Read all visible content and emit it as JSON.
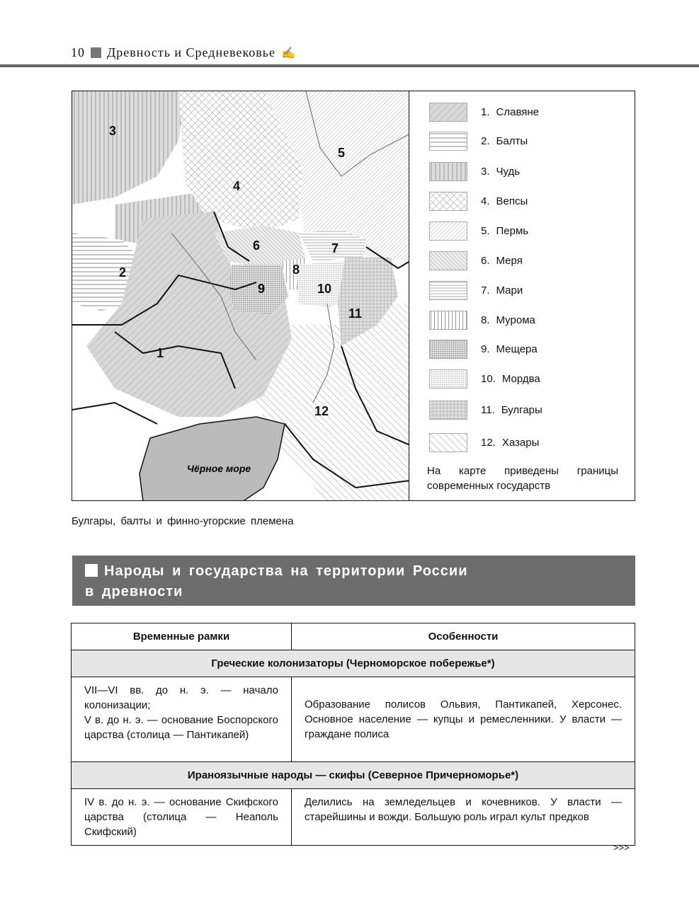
{
  "header": {
    "page_number": "10",
    "section": "Древность и Средневековье",
    "icon": "candle-hand-icon"
  },
  "map": {
    "region_labels": [
      "1",
      "2",
      "3",
      "4",
      "5",
      "6",
      "7",
      "8",
      "9",
      "10",
      "11",
      "12"
    ],
    "sea_label": "Чёрное море"
  },
  "legend": {
    "items": [
      {
        "num": "1.",
        "label": "Славяне",
        "pattern": "diagonal-gray"
      },
      {
        "num": "2.",
        "label": "Балты",
        "pattern": "horizontal"
      },
      {
        "num": "3.",
        "label": "Чудь",
        "pattern": "vertical-gray"
      },
      {
        "num": "4.",
        "label": "Вепсы",
        "pattern": "crosshatch"
      },
      {
        "num": "5.",
        "label": "Пермь",
        "pattern": "diagonal-fine"
      },
      {
        "num": "6.",
        "label": "Меря",
        "pattern": "back-diagonal"
      },
      {
        "num": "7.",
        "label": "Мари",
        "pattern": "horizontal-fine"
      },
      {
        "num": "8.",
        "label": "Мурома",
        "pattern": "vertical"
      },
      {
        "num": "9.",
        "label": "Мещера",
        "pattern": "dots"
      },
      {
        "num": "10.",
        "label": "Мордва",
        "pattern": "grid-fine"
      },
      {
        "num": "11.",
        "label": "Булгары",
        "pattern": "grid"
      },
      {
        "num": "12.",
        "label": "Хазары",
        "pattern": "back-diagonal-wide"
      }
    ],
    "note_lines": [
      "На карте приведены границы",
      "современных государств"
    ]
  },
  "caption": "Булгары, балты и финно-угорские племена",
  "section_title": {
    "line1": "Народы и государства на территории России",
    "line2": "в древности"
  },
  "table": {
    "headers": [
      "Временные рамки",
      "Особенности"
    ],
    "groups": [
      {
        "title": "Греческие колонизаторы (Черноморское побережье*)",
        "period": [
          "VII—VI вв. до н. э. — начало колонизации;",
          "V в. до н. э. — основание Боспорского царства (столица — Пантикапей)"
        ],
        "features": "Образование полисов Ольвия, Пантикапей, Херсонес. Основное население — купцы и ремесленники. У власти — граждане полиса"
      },
      {
        "title": "Ираноязычные народы — скифы (Северное Причерноморье*)",
        "period": [
          "IV в. до н. э. — основание Скифского царства (столица — Неаполь Скифский)"
        ],
        "features": "Делились на земледельцев и кочевников. У власти — старейшины и вожди. Большую роль играл культ предков"
      }
    ]
  },
  "continued_mark": ">>>"
}
